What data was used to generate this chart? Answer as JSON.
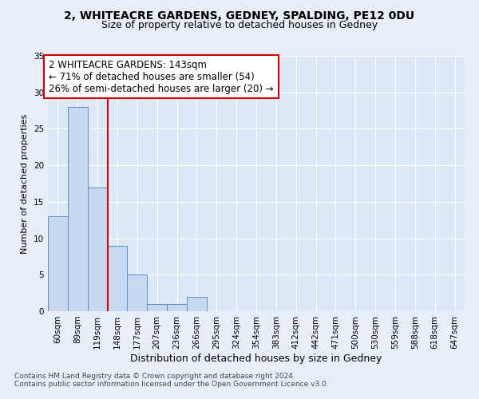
{
  "title1": "2, WHITEACRE GARDENS, GEDNEY, SPALDING, PE12 0DU",
  "title2": "Size of property relative to detached houses in Gedney",
  "xlabel": "Distribution of detached houses by size in Gedney",
  "ylabel": "Number of detached properties",
  "categories": [
    "60sqm",
    "89sqm",
    "119sqm",
    "148sqm",
    "177sqm",
    "207sqm",
    "236sqm",
    "266sqm",
    "295sqm",
    "324sqm",
    "354sqm",
    "383sqm",
    "412sqm",
    "442sqm",
    "471sqm",
    "500sqm",
    "530sqm",
    "559sqm",
    "588sqm",
    "618sqm",
    "647sqm"
  ],
  "values": [
    13,
    28,
    17,
    9,
    5,
    1,
    1,
    2,
    0,
    0,
    0,
    0,
    0,
    0,
    0,
    0,
    0,
    0,
    0,
    0,
    0
  ],
  "bar_color": "#c8d8ee",
  "bar_edge_color": "#5b8dc8",
  "ylim": [
    0,
    35
  ],
  "yticks": [
    0,
    5,
    10,
    15,
    20,
    25,
    30,
    35
  ],
  "vline_x": 3.0,
  "vline_color": "#cc0000",
  "annotation_text": "2 WHITEACRE GARDENS: 143sqm\n← 71% of detached houses are smaller (54)\n26% of semi-detached houses are larger (20) →",
  "annotation_box_color": "#ffffff",
  "annotation_box_edge": "#cc0000",
  "footer1": "Contains HM Land Registry data © Crown copyright and database right 2024.",
  "footer2": "Contains public sector information licensed under the Open Government Licence v3.0.",
  "bg_color": "#e8eef8",
  "plot_bg_color": "#dce8f5",
  "grid_color": "#ffffff",
  "title1_fontsize": 10,
  "title2_fontsize": 9,
  "xlabel_fontsize": 9,
  "ylabel_fontsize": 8,
  "tick_fontsize": 7.5,
  "annotation_fontsize": 8.5,
  "footer_fontsize": 6.5
}
